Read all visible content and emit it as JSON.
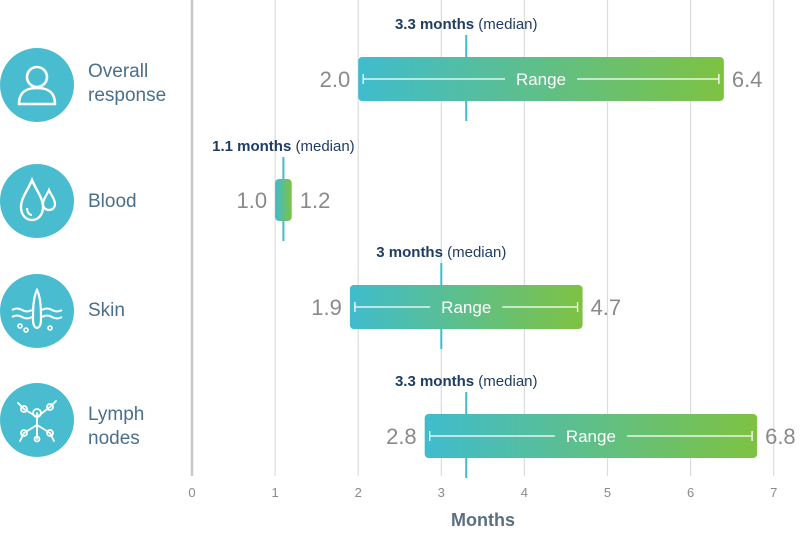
{
  "colors": {
    "teal": "#3fbccd",
    "green": "#7ec242",
    "icon_circle": "#49bdcf",
    "label_text": "#4a6f8c",
    "median_bold": "#1f3d63",
    "value_text": "#8a8a8a",
    "grid": "#dcdcdc",
    "axis": "#c8c8c8"
  },
  "rows": [
    {
      "label_lines": [
        "Overall",
        "response"
      ],
      "icon": "person-icon"
    },
    {
      "label_lines": [
        "Blood"
      ],
      "icon": "blood-drops-icon"
    },
    {
      "label_lines": [
        "Skin"
      ],
      "icon": "skin-hair-follicle-icon"
    },
    {
      "label_lines": [
        "Lymph",
        "nodes"
      ],
      "icon": "lymph-nodes-icon"
    }
  ],
  "chart_data": {
    "type": "range-bar",
    "xlabel": "Months",
    "xlim": [
      0,
      7
    ],
    "x_ticks": [
      "0",
      "1",
      "2",
      "3",
      "4",
      "5",
      "6",
      "7"
    ],
    "grid": true,
    "range_label": "Range",
    "median_suffix": "(median)",
    "series": [
      {
        "category": "Overall response",
        "min": 2.0,
        "max": 6.4,
        "median": 3.3,
        "min_label": "2.0",
        "max_label": "6.4",
        "median_label": "3.3 months",
        "show_range_text": true
      },
      {
        "category": "Blood",
        "min": 1.0,
        "max": 1.2,
        "median": 1.1,
        "min_label": "1.0",
        "max_label": "1.2",
        "median_label": "1.1 months",
        "show_range_text": false
      },
      {
        "category": "Skin",
        "min": 1.9,
        "max": 4.7,
        "median": 3.0,
        "min_label": "1.9",
        "max_label": "4.7",
        "median_label": "3 months",
        "show_range_text": true
      },
      {
        "category": "Lymph nodes",
        "min": 2.8,
        "max": 6.8,
        "median": 3.3,
        "min_label": "2.8",
        "max_label": "6.8",
        "median_label": "3.3 months",
        "show_range_text": true
      }
    ]
  }
}
